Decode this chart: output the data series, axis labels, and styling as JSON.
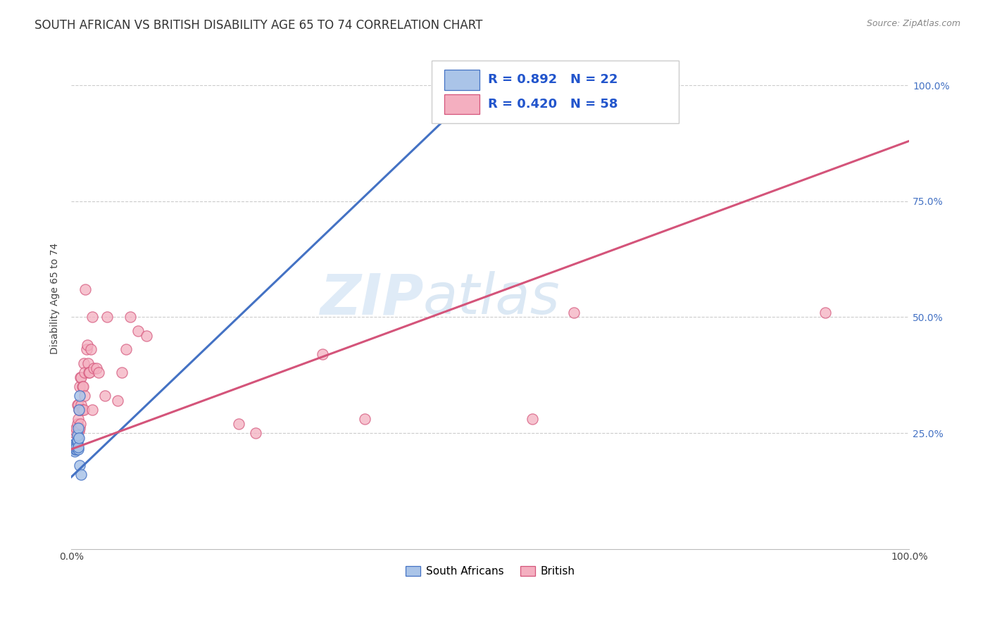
{
  "title": "SOUTH AFRICAN VS BRITISH DISABILITY AGE 65 TO 74 CORRELATION CHART",
  "source": "Source: ZipAtlas.com",
  "ylabel": "Disability Age 65 to 74",
  "xlim": [
    0.0,
    1.0
  ],
  "ylim": [
    0.0,
    1.08
  ],
  "ytick_vals": [
    0.25,
    0.5,
    0.75,
    1.0
  ],
  "ytick_labels": [
    "25.0%",
    "50.0%",
    "75.0%",
    "100.0%"
  ],
  "xtick_vals": [
    0.0,
    0.2,
    0.4,
    0.6,
    0.8,
    1.0
  ],
  "xtick_labels_left": "0.0%",
  "xtick_labels_right": "100.0%",
  "legend_sa_R": "0.892",
  "legend_sa_N": "22",
  "legend_br_R": "0.420",
  "legend_br_N": "58",
  "sa_fill_color": "#aac4e8",
  "br_fill_color": "#f4afc0",
  "sa_edge_color": "#4472c4",
  "br_edge_color": "#d4547a",
  "sa_line_color": "#4472c4",
  "br_line_color": "#d4547a",
  "watermark_color": "#c8dff0",
  "background_color": "#ffffff",
  "title_fontsize": 12,
  "axis_label_fontsize": 10,
  "tick_fontsize": 10,
  "legend_fontsize": 13,
  "sa_x": [
    0.002,
    0.003,
    0.003,
    0.004,
    0.004,
    0.005,
    0.005,
    0.005,
    0.006,
    0.006,
    0.006,
    0.007,
    0.007,
    0.007,
    0.008,
    0.008,
    0.008,
    0.009,
    0.009,
    0.01,
    0.01,
    0.012
  ],
  "sa_y": [
    0.215,
    0.22,
    0.225,
    0.21,
    0.225,
    0.215,
    0.22,
    0.22,
    0.215,
    0.225,
    0.22,
    0.23,
    0.235,
    0.245,
    0.215,
    0.22,
    0.26,
    0.24,
    0.3,
    0.33,
    0.18,
    0.16
  ],
  "br_x": [
    0.002,
    0.003,
    0.003,
    0.004,
    0.004,
    0.005,
    0.005,
    0.006,
    0.006,
    0.007,
    0.007,
    0.007,
    0.008,
    0.008,
    0.008,
    0.009,
    0.009,
    0.01,
    0.01,
    0.01,
    0.011,
    0.011,
    0.012,
    0.012,
    0.013,
    0.013,
    0.014,
    0.015,
    0.015,
    0.016,
    0.016,
    0.017,
    0.018,
    0.019,
    0.02,
    0.021,
    0.022,
    0.023,
    0.025,
    0.025,
    0.027,
    0.03,
    0.033,
    0.04,
    0.043,
    0.055,
    0.06,
    0.065,
    0.07,
    0.08,
    0.09,
    0.2,
    0.22,
    0.3,
    0.35,
    0.55,
    0.6,
    0.9
  ],
  "br_y": [
    0.215,
    0.215,
    0.22,
    0.22,
    0.25,
    0.22,
    0.255,
    0.225,
    0.26,
    0.22,
    0.27,
    0.31,
    0.24,
    0.28,
    0.31,
    0.255,
    0.3,
    0.26,
    0.3,
    0.35,
    0.27,
    0.37,
    0.31,
    0.37,
    0.3,
    0.35,
    0.35,
    0.3,
    0.4,
    0.33,
    0.38,
    0.56,
    0.43,
    0.44,
    0.4,
    0.38,
    0.38,
    0.43,
    0.3,
    0.5,
    0.39,
    0.39,
    0.38,
    0.33,
    0.5,
    0.32,
    0.38,
    0.43,
    0.5,
    0.47,
    0.46,
    0.27,
    0.25,
    0.42,
    0.28,
    0.28,
    0.51,
    0.51
  ],
  "sa_line_x0": 0.0,
  "sa_line_y0": 0.155,
  "sa_line_x1": 0.5,
  "sa_line_y1": 1.02,
  "br_line_x0": 0.0,
  "br_line_y0": 0.215,
  "br_line_x1": 1.0,
  "br_line_y1": 0.88
}
